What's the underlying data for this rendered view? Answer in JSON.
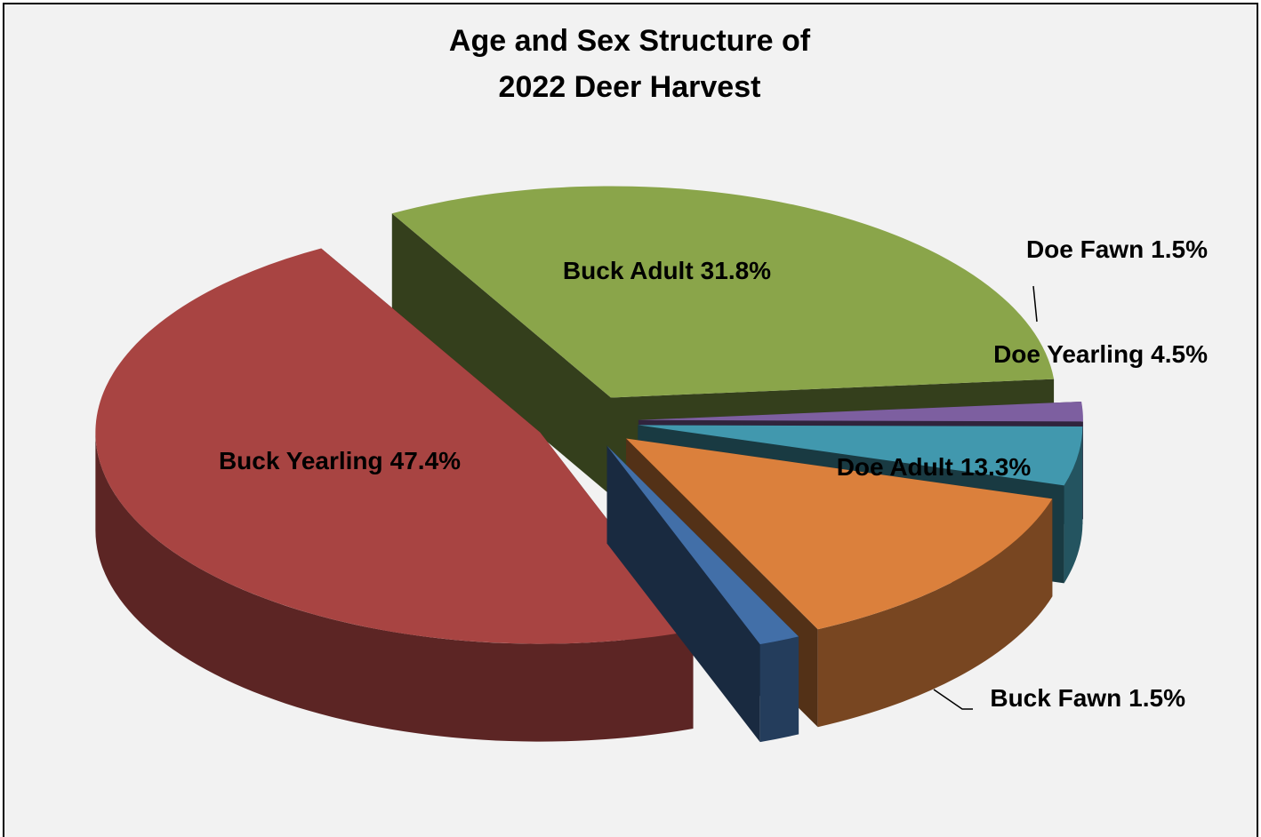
{
  "chart_data": {
    "type": "pie3d",
    "title": [
      "Age and Sex Structure of",
      "2022 Deer Harvest"
    ],
    "categories": [
      "Buck Adult",
      "Doe Fawn",
      "Doe Yearling",
      "Doe Adult",
      "Buck Fawn",
      "Buck Yearling"
    ],
    "values": [
      31.8,
      1.5,
      4.5,
      13.3,
      1.5,
      47.4
    ],
    "value_labels": [
      "31.8%",
      "1.5%",
      "4.5%",
      "13.3%",
      "1.5%",
      "47.4%"
    ],
    "colors": [
      "#8aa54a",
      "#7d5fa0",
      "#4198ae",
      "#db803c",
      "#426fa8",
      "#a84442"
    ]
  }
}
